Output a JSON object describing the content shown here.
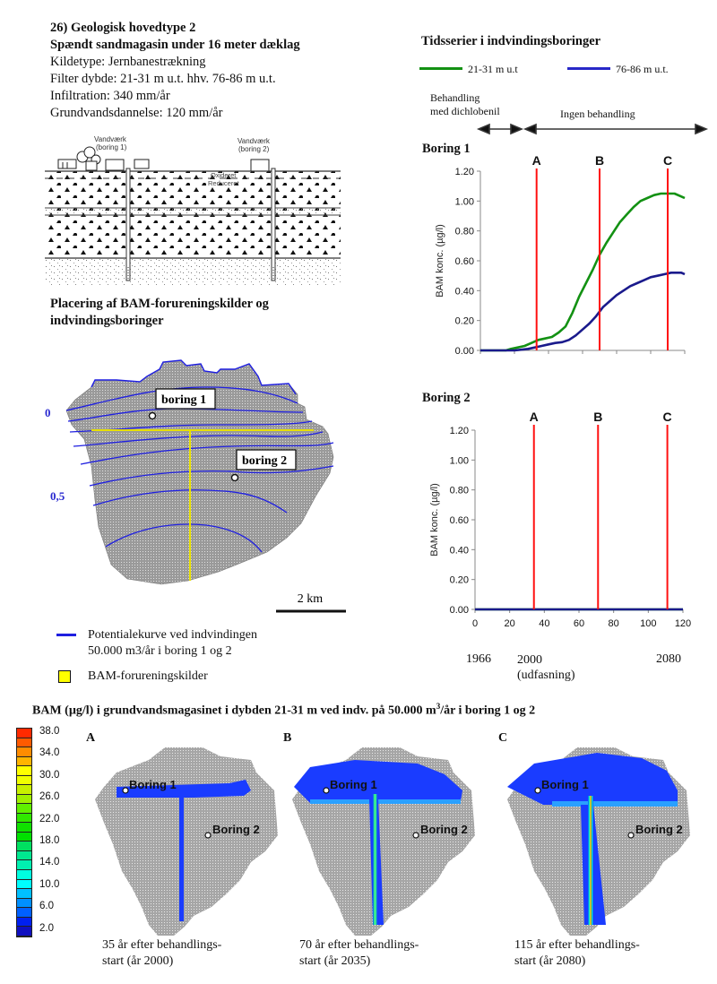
{
  "header": {
    "title": "26) Geologisk hovedtype 2",
    "subtitle": "Spændt sandmagasin under 16 meter dæklag",
    "lines": [
      "Kildetype: Jernbanestrækning",
      "Filter dybde: 21-31 m u.t. hhv. 76-86 m u.t.",
      "Infiltration: 340 mm/år",
      "Grundvandsdannelse: 120 mm/år"
    ]
  },
  "cross_section": {
    "label_boring1": [
      "Vandværk",
      "(boring 1)"
    ],
    "label_boring2": [
      "Vandværk",
      "(boring 2)"
    ],
    "label_oxideret": "Oxideret",
    "label_reduceret": "Reduceret"
  },
  "map": {
    "title": [
      "Placering af BAM-forureningskilder og",
      "indvindingsboringer"
    ],
    "boring1_label": "boring 1",
    "boring2_label": "boring 2",
    "contour_label_0": "0",
    "contour_label_05": "0,5",
    "scale_label": "2 km",
    "legend": [
      {
        "label": [
          "Potentialekurve ved indvindingen",
          "50.000 m3/år i boring 1 og 2"
        ],
        "color": "#1f1fe0"
      },
      {
        "label": [
          "BAM-forureningskilder"
        ],
        "color": "#ffff00"
      }
    ]
  },
  "timeseries": {
    "title": "Tidsserier i indvindingsboringer",
    "legend": [
      {
        "label": "21-31 m u.t",
        "color": "#139113"
      },
      {
        "label": "76-86 m u.t.",
        "color": "#2828c8"
      }
    ],
    "period1": [
      "Behandling",
      "med dichlobenil"
    ],
    "period2": "Ingen behandling",
    "year_labels": [
      {
        "year": "1966",
        "x": 0
      },
      {
        "year": "2000",
        "x": 34,
        "note": "(udfasning)"
      },
      {
        "year": "2080",
        "x": 114
      }
    ]
  },
  "chart_data": [
    {
      "type": "line",
      "title": "Boring 1",
      "xlabel": "",
      "ylabel": "BAM konc. (µg/l)",
      "xlim": [
        0,
        120
      ],
      "ylim": [
        0,
        1.2
      ],
      "xticks": [
        0,
        20,
        40,
        60,
        80,
        100,
        120
      ],
      "yticks": [
        "0.00",
        "0.20",
        "0.40",
        "0.60",
        "0.80",
        "1.00",
        "1.20"
      ],
      "grid": false,
      "markers": [
        {
          "label": "A",
          "x": 33
        },
        {
          "label": "B",
          "x": 70
        },
        {
          "label": "C",
          "x": 110
        }
      ],
      "series": [
        {
          "name": "21-31 m u.t",
          "color": "#139113",
          "x": [
            0,
            15,
            18,
            22,
            26,
            30,
            34,
            38,
            42,
            46,
            50,
            54,
            58,
            62,
            66,
            70,
            74,
            78,
            82,
            86,
            90,
            94,
            98,
            102,
            106,
            110,
            114,
            118,
            120
          ],
          "y": [
            0,
            0,
            0.01,
            0.02,
            0.03,
            0.05,
            0.07,
            0.08,
            0.09,
            0.12,
            0.16,
            0.25,
            0.36,
            0.45,
            0.54,
            0.64,
            0.72,
            0.79,
            0.86,
            0.91,
            0.96,
            1.0,
            1.02,
            1.04,
            1.05,
            1.05,
            1.05,
            1.03,
            1.02
          ]
        },
        {
          "name": "76-86 m u.t.",
          "color": "#1a1a8c",
          "x": [
            0,
            20,
            24,
            28,
            32,
            36,
            40,
            44,
            48,
            52,
            56,
            60,
            64,
            68,
            72,
            76,
            80,
            84,
            88,
            92,
            96,
            100,
            104,
            108,
            112,
            116,
            118,
            120
          ],
          "y": [
            0,
            0,
            0.005,
            0.01,
            0.02,
            0.03,
            0.04,
            0.05,
            0.055,
            0.07,
            0.1,
            0.14,
            0.18,
            0.23,
            0.29,
            0.33,
            0.37,
            0.4,
            0.43,
            0.45,
            0.47,
            0.49,
            0.5,
            0.51,
            0.52,
            0.52,
            0.52,
            0.51
          ]
        }
      ]
    },
    {
      "type": "line",
      "title": "Boring 2",
      "xlabel": "",
      "ylabel": "BAM konc. (µg/l)",
      "xlim": [
        0,
        120
      ],
      "ylim": [
        0,
        1.2
      ],
      "xticks": [
        0,
        20,
        40,
        60,
        80,
        100,
        120
      ],
      "yticks": [
        "0.00",
        "0.20",
        "0.40",
        "0.60",
        "0.80",
        "1.00",
        "1.20"
      ],
      "grid": false,
      "markers": [
        {
          "label": "A",
          "x": 34
        },
        {
          "label": "B",
          "x": 71
        },
        {
          "label": "C",
          "x": 111
        }
      ],
      "series": [
        {
          "name": "21-31 m u.t",
          "color": "#139113",
          "x": [
            0,
            120
          ],
          "y": [
            0,
            0
          ]
        },
        {
          "name": "76-86 m u.t.",
          "color": "#1a1a8c",
          "x": [
            0,
            120
          ],
          "y": [
            0,
            0
          ]
        }
      ]
    }
  ],
  "bottom": {
    "title_pre": "BAM (µg/l) i grundvandsmagasinet i dybden 21-31 m ved indv. på 50.000 m",
    "title_sup": "3",
    "title_post": "/år i boring 1 og 2",
    "colorbar": {
      "labels": [
        "38.0",
        "34.0",
        "30.0",
        "26.0",
        "22.0",
        "18.0",
        "14.0",
        "10.0",
        "6.0",
        "2.0"
      ],
      "colors": [
        "#ff2a00",
        "#ff5a00",
        "#ff8c00",
        "#ffb400",
        "#ffff00",
        "#f0ff00",
        "#c8f000",
        "#a0f000",
        "#60f000",
        "#30e800",
        "#10e000",
        "#00e000",
        "#00e060",
        "#00e890",
        "#00f0b0",
        "#00ffe0",
        "#00ffff",
        "#00c0ff",
        "#0090ff",
        "#0060ff",
        "#0020f0",
        "#1010c0"
      ]
    },
    "panels": [
      {
        "label": "A",
        "boring1": "Boring 1",
        "boring2": "Boring 2",
        "caption": [
          "35 år efter behandlings-",
          "start (år 2000)"
        ]
      },
      {
        "label": "B",
        "boring1": "Boring 1",
        "boring2": "Boring 2",
        "caption": [
          "70 år efter behandlings-",
          "start (år 2035)"
        ]
      },
      {
        "label": "C",
        "boring1": "Boring 1",
        "boring2": "Boring 2",
        "caption": [
          "115 år efter behandlings-",
          "start (år 2080)"
        ]
      }
    ]
  }
}
